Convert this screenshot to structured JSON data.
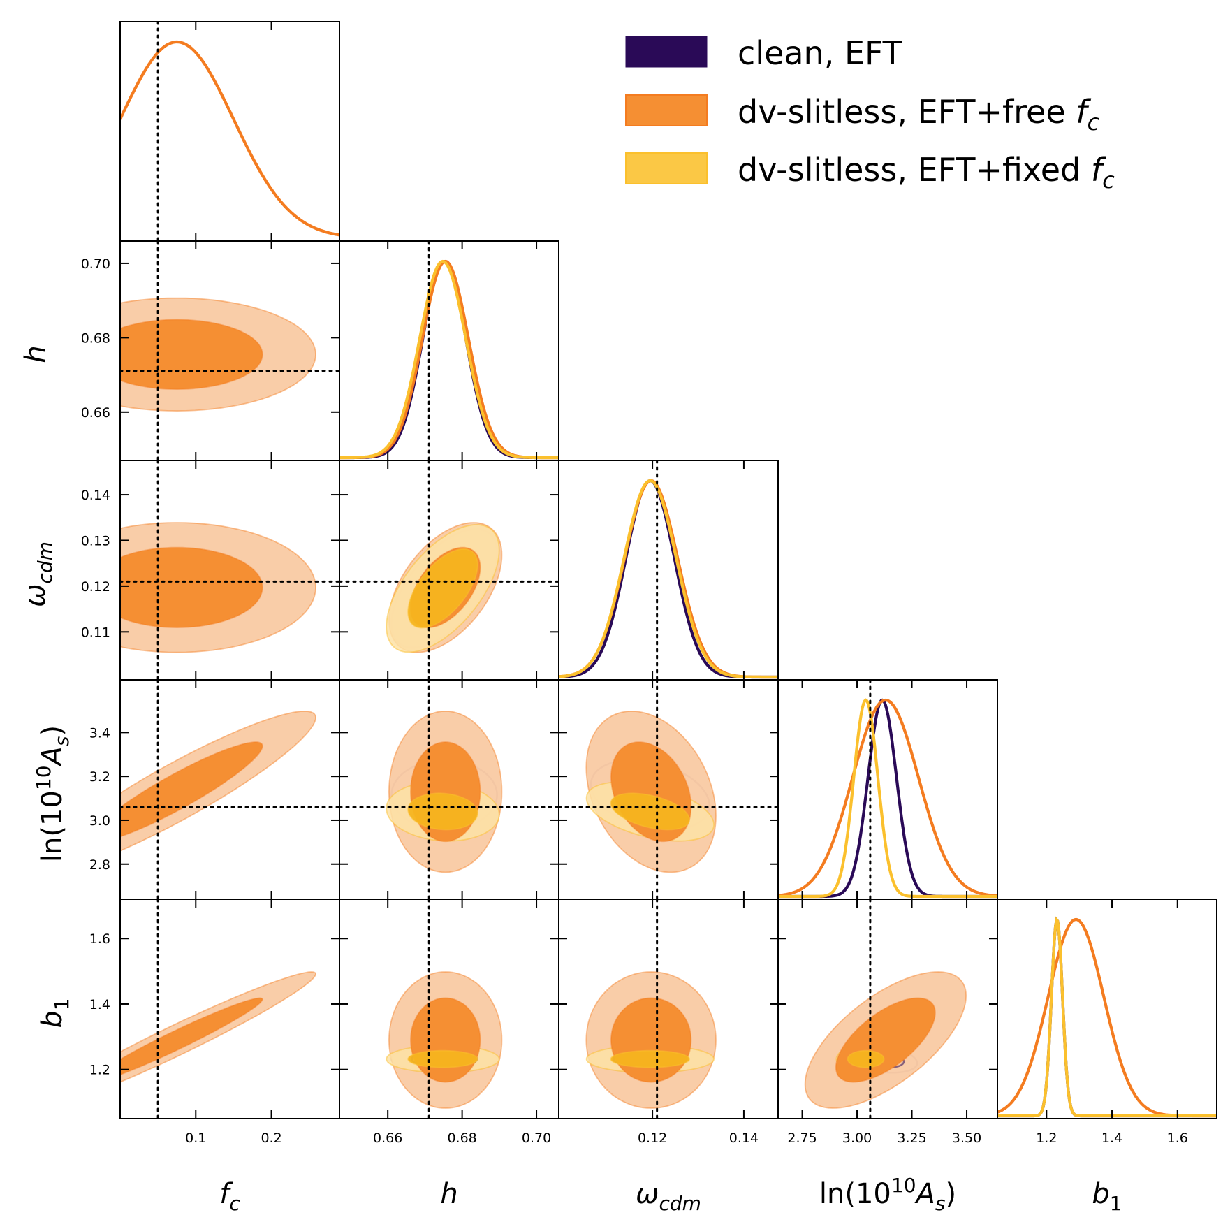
{
  "colors": {
    "clean": "#2a0a57",
    "free": "#f47c20",
    "free_fill_dark": "#f58f33",
    "free_fill_light": "#f9caa3",
    "fixed": "#fbc02d",
    "fixed_fill_dark": "#f6b41f",
    "fixed_fill_light": "#fde2a6",
    "truth_line": "#000000"
  },
  "legend": {
    "clean": {
      "label": "clean, EFT"
    },
    "free": {
      "label": "dv-slitless, EFT+free ",
      "sym": "f",
      "sub": "c"
    },
    "fixed": {
      "label": "dv-slitless, EFT+fixed ",
      "sym": "f",
      "sub": "c"
    }
  },
  "axes": {
    "fc": {
      "sym": "f",
      "sub": "c"
    },
    "h": {
      "sym": "h"
    },
    "omega": {
      "sym": "ω",
      "sub": "cdm"
    },
    "as": {
      "pre": "ln(10",
      "sup": "10",
      "sym": "A",
      "sub": "s",
      "post": ")"
    },
    "b1": {
      "sym": "b",
      "sub": "1"
    }
  },
  "chart_data": {
    "type": "corner",
    "title": "",
    "parameters": [
      "f_c",
      "h",
      "omega_cdm",
      "ln(10^10 A_s)",
      "b_1"
    ],
    "ranges": {
      "f_c": [
        0.0,
        0.29
      ],
      "h": [
        0.647,
        0.706
      ],
      "omega_cdm": [
        0.0995,
        0.1475
      ],
      "ln(10^10 A_s)": [
        2.64,
        3.64
      ],
      "b_1": [
        1.05,
        1.72
      ]
    },
    "ticks": {
      "f_c": {
        "values": [
          0.1,
          0.2
        ],
        "labels": [
          "0.1",
          "0.2"
        ]
      },
      "h": {
        "values": [
          0.66,
          0.68,
          0.7
        ],
        "labels": [
          "0.66",
          "0.68",
          "0.70"
        ]
      },
      "omega_cdm": {
        "values": [
          0.12,
          0.14
        ],
        "labels": [
          "0.12",
          "0.14"
        ],
        "y_values": [
          0.11,
          0.12,
          0.13,
          0.14
        ],
        "y_labels": [
          "0.11",
          "0.12",
          "0.13",
          "0.14"
        ]
      },
      "ln(10^10 A_s)": {
        "values": [
          2.75,
          3.0,
          3.25,
          3.5
        ],
        "labels": [
          "2.75",
          "3.00",
          "3.25",
          "3.50"
        ],
        "y_values": [
          2.8,
          3.0,
          3.2,
          3.4
        ],
        "y_labels": [
          "2.8",
          "3.0",
          "3.2",
          "3.4"
        ]
      },
      "b_1": {
        "values": [
          1.2,
          1.4,
          1.6
        ],
        "labels": [
          "1.2",
          "1.4",
          "1.6"
        ]
      }
    },
    "truth": {
      "f_c": 0.05,
      "h": 0.6711,
      "omega_cdm": 0.121,
      "ln(10^10 A_s)": 3.06,
      "b_1": null
    },
    "series": [
      {
        "name": "clean, EFT",
        "color": "#2a0a57",
        "f_c": null,
        "h": {
          "mean": 0.6752,
          "sigma": 0.0058
        },
        "omega_cdm": {
          "mean": 0.1195,
          "sigma": 0.0053
        },
        "ln(10^10 A_s)": {
          "mean": 3.115,
          "sigma": 0.065
        },
        "b_1": {
          "mean": 1.232,
          "sigma": 0.017
        },
        "correlations": [
          [
            "h",
            "omega_cdm",
            0.6
          ],
          [
            "h",
            "ln(10^10 A_s)",
            0.0
          ],
          [
            "omega_cdm",
            "ln(10^10 A_s)",
            -0.3
          ],
          [
            "h",
            "b_1",
            0.0
          ],
          [
            "omega_cdm",
            "b_1",
            0.0
          ],
          [
            "ln(10^10 A_s)",
            "b_1",
            -0.3
          ]
        ]
      },
      {
        "name": "dv-slitless, EFT+free f_c",
        "color": "#f47c20",
        "f_c": {
          "mean": 0.075,
          "sigma": 0.075
        },
        "h": {
          "mean": 0.6755,
          "sigma": 0.0062
        },
        "omega_cdm": {
          "mean": 0.1197,
          "sigma": 0.0058
        },
        "ln(10^10 A_s)": {
          "mean": 3.13,
          "sigma": 0.15
        },
        "b_1": {
          "mean": 1.29,
          "sigma": 0.085
        },
        "correlations": [
          [
            "f_c",
            "h",
            0.0
          ],
          [
            "f_c",
            "omega_cdm",
            0.0
          ],
          [
            "f_c",
            "ln(10^10 A_s)",
            0.92
          ],
          [
            "f_c",
            "b_1",
            0.97
          ],
          [
            "h",
            "omega_cdm",
            0.5
          ],
          [
            "h",
            "ln(10^10 A_s)",
            0.0
          ],
          [
            "omega_cdm",
            "ln(10^10 A_s)",
            -0.3
          ],
          [
            "h",
            "b_1",
            0.0
          ],
          [
            "omega_cdm",
            "b_1",
            0.0
          ],
          [
            "ln(10^10 A_s)",
            "b_1",
            0.65
          ]
        ]
      },
      {
        "name": "dv-slitless, EFT+fixed f_c",
        "color": "#fbc02d",
        "f_c": null,
        "h": {
          "mean": 0.6748,
          "sigma": 0.0062
        },
        "omega_cdm": {
          "mean": 0.1195,
          "sigma": 0.0057
        },
        "ln(10^10 A_s)": {
          "mean": 3.04,
          "sigma": 0.055
        },
        "b_1": {
          "mean": 1.232,
          "sigma": 0.017
        },
        "correlations": [
          [
            "h",
            "omega_cdm",
            0.6
          ],
          [
            "h",
            "ln(10^10 A_s)",
            -0.1
          ],
          [
            "omega_cdm",
            "ln(10^10 A_s)",
            -0.45
          ],
          [
            "h",
            "b_1",
            0.0
          ],
          [
            "omega_cdm",
            "b_1",
            0.0
          ],
          [
            "ln(10^10 A_s)",
            "b_1",
            0.0
          ]
        ]
      }
    ],
    "contour_levels": [
      "68%",
      "95%"
    ]
  }
}
